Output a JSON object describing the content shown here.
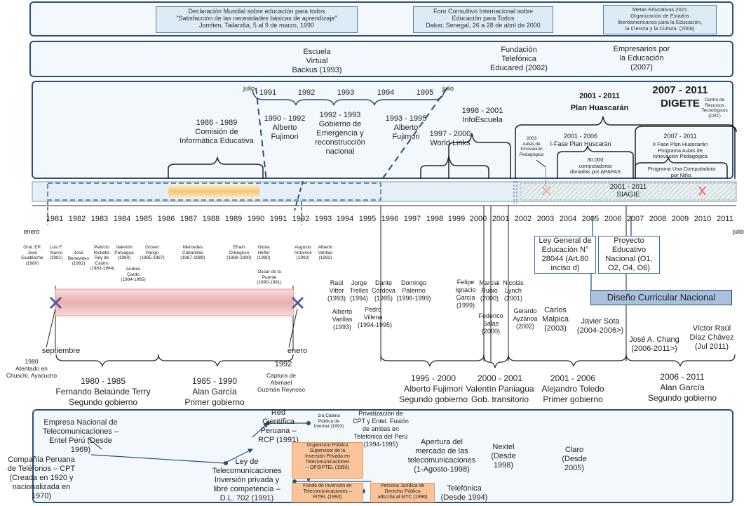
{
  "top": {
    "jomtien": {
      "line1": "Declaración Mundial sobre educación para todos",
      "line2": "\"Satisfacción de las necesidades básicas de aprendizaje\"",
      "line3": "Jomtien, Tailandia, 5 al 9 de marzo, 1990"
    },
    "dakar": {
      "line1": "Foro Consultivo Internacional sobre",
      "line2": "Educación para Todos",
      "line3": "Dakar, Senegal, 26 a 28 de abril de 2000"
    },
    "metas": {
      "line1": "Metas Educativas 2021",
      "line2": "Organización de Estados",
      "line3": "Iberoamericanos para la Educación,",
      "line4": "la Ciencia y la Cultura. (2008)"
    }
  },
  "orgs": {
    "backus": "Escuela\nVirtual\nBackus (1993)",
    "telefonica": "Fundación\nTelefónica\nEducared (2002)",
    "empresarios": "Empresarios por\nla Educación\n(2007)"
  },
  "timeline_years": [
    "1981",
    "1982",
    "1983",
    "1984",
    "1985",
    "1986",
    "1987",
    "1988",
    "1989",
    "1990",
    "1991",
    "1992",
    "1993",
    "1994",
    "1995",
    "1996",
    "1997",
    "1998",
    "1999",
    "2000",
    "2001",
    "2002",
    "2003",
    "2004",
    "2005",
    "2006",
    "2007",
    "2008",
    "2009",
    "2010",
    "2011"
  ],
  "programs": {
    "zoom_years": [
      "1991",
      "1992",
      "1993",
      "1994",
      "1995"
    ],
    "julio_left": "julio",
    "julio_right": "julio",
    "comision": "1986 - 1989\nComisión de\nInformática Educativa",
    "fujimori1": "1990 - 1992\nAlberto\nFujimori",
    "emergencia": "1992 - 1993\nGobierno de\nEmergencia y\nreconstrucción\nnacional",
    "fujimori2": "1993 - 1995\nAlberto\nFujimori",
    "infoescuela": "1998 - 2001\nInfoEscuela",
    "worldlinks": "1997 - 2000\nWorld Links",
    "huascaran_years": "2001 - 2011",
    "huascaran": "Plan Huascarán",
    "digete_years": "2007 - 2011",
    "digete": "DIGETE",
    "crt": "Centro de\nRecursos\nTecnológicos\n(CRT)",
    "aulas": "2003\nAulas de\nInnovación\nPedagógica",
    "fase1": "2001 - 2006\nI-Fase Plan Huscarán",
    "computadoras": "30,000\ncomputadoras\ndonadas por APAFAS",
    "fase2_years": "2007 - 2011",
    "fase2": "II Fase Plan Huascarán\nPrograma Aulas de\nInnovación Pedagógica",
    "una_computadora": "Programa Una Computadora\npor Niño.",
    "siagie": "2001 - 2011\nSIAGIE"
  },
  "markers": {
    "enero": "enero",
    "julio": "julio",
    "septiembre": "septiembre",
    "atentado": "1980\nAtentado en\nChuschi, Ayacucho",
    "enero2": "enero",
    "year1992": "1992",
    "captura": "Captura de\nAbimael\nGuzmán Reynoso"
  },
  "ministers": [
    "Gral. EP.\nJosé\nGuabloche\n(1980)",
    "Luis F.\nAlarco\n(1981)",
    "José\nBenavides\n(1982)",
    "Patricio\nRicketts\nRey de\nCastro\n(1983-1984)",
    "Valentín\nPaniagua\n(1984)",
    "Grover\nPango\n(1985-1987)",
    "Andrés\nCardo\n(1984-1985)",
    "Mercedes\nCabanillas\n(1987-1989)",
    "Efraín\nOrbegoso\n(1989-1990)",
    "Gloria\nHelfer\n(1990)",
    "Oscar de la\nPuente\n(1990-1991)",
    "Augusto\nAntonioli\n(1992)",
    "Alberto\nVarillas\n(1993)",
    "Raúl\nVittor\n(1993)",
    "Jorge\nTrelles\n(1994)",
    "Dante\nCórdova\n(1995)",
    "Domingo\nPalermo\n(1996-1999)",
    "Alberto\nVarillas\n(1993)",
    "Pedro\nVillena\n(1994-1995)",
    "Felipe\nIgnacio\nGarcía\n(1999)",
    "Marcial\nRubio\n(2000)",
    "Nicolás\nLynch\n(2001)",
    "Federico\nSalas\n(2000)",
    "Gerardo\nAyzanoa\n(2002)",
    "Carlos\nMalpica\n(2003)",
    "Javier Sota\n(2004-2006>)",
    "José A. Chang\n(2006-2011>)",
    "Víctor Raúl\nDíaz Chávez\n(Jul 2011)"
  ],
  "policy": {
    "ley": "Ley General de\nEducación N°\n28044 (Art.80\ninciso d)",
    "proyecto": "Proyecto\nEducativo\nNacional (O1,\nO2, O4, O6)",
    "diseno": "Diseño Curricular Nacional"
  },
  "governments": [
    "1980 - 1985\nFernando Belaúnde Terry\nSegundo gobierno",
    "1985 - 1990\nAlan García\nPrimer gobierno",
    "1995 - 2000\nAlberto Fujimori\nSegundo gobierno",
    "2000 - 2001\nValentín Paniagua\nGob. transitorio",
    "2001 - 2006\nAlejandro Toledo\nPrimer gobierno",
    "2006 - 2011\nAlan García\nSegundo gobierno"
  ],
  "telecom": {
    "entel": "Empresa Nacional de\nTelecomunicaciones –\nEntel Perú (Desde\n1969)",
    "cpt": "Compañía Peruana\nde Teléfonos – CPT\n(Creada en 1920 y\nnacionalizada en\n1970)",
    "ley": "Ley de\nTelecomunicaciones\nInversión privada y\nlibre competencia –\nD.L. 702 (1991)",
    "rcp": "Red\nCientífica\nPeruana –\nRCP (1991)",
    "cabina": "1ra Cabina\nPública de\nInternet (1993)",
    "privatizacion": "Privatización de\nCPT y Entel. Fusión\nde ambas en\nTelefónica del Perú\n(1994-1995)",
    "osiptel": "Organismo Público\nSupervisor de la\nInversión Privada en\nTelecomunicaciones\n– OPSIPTEL (1993)",
    "fitel": "Fondo de Inversión en\nTelecomunicaciones –\nFITEL (1993)",
    "persona": "Persona Jurídica de\nDerecho Público\nadscrita al MTC (1996)",
    "apertura": "Apertura del\nmercado de las\ntelecomunicaciones\n(1-Agosto-1998)",
    "telefonica": "Telefónica\n(Desde 1994)",
    "nextel": "Nextel\n(Desde\n1998)",
    "claro": "Claro\n(Desde\n2005)"
  }
}
